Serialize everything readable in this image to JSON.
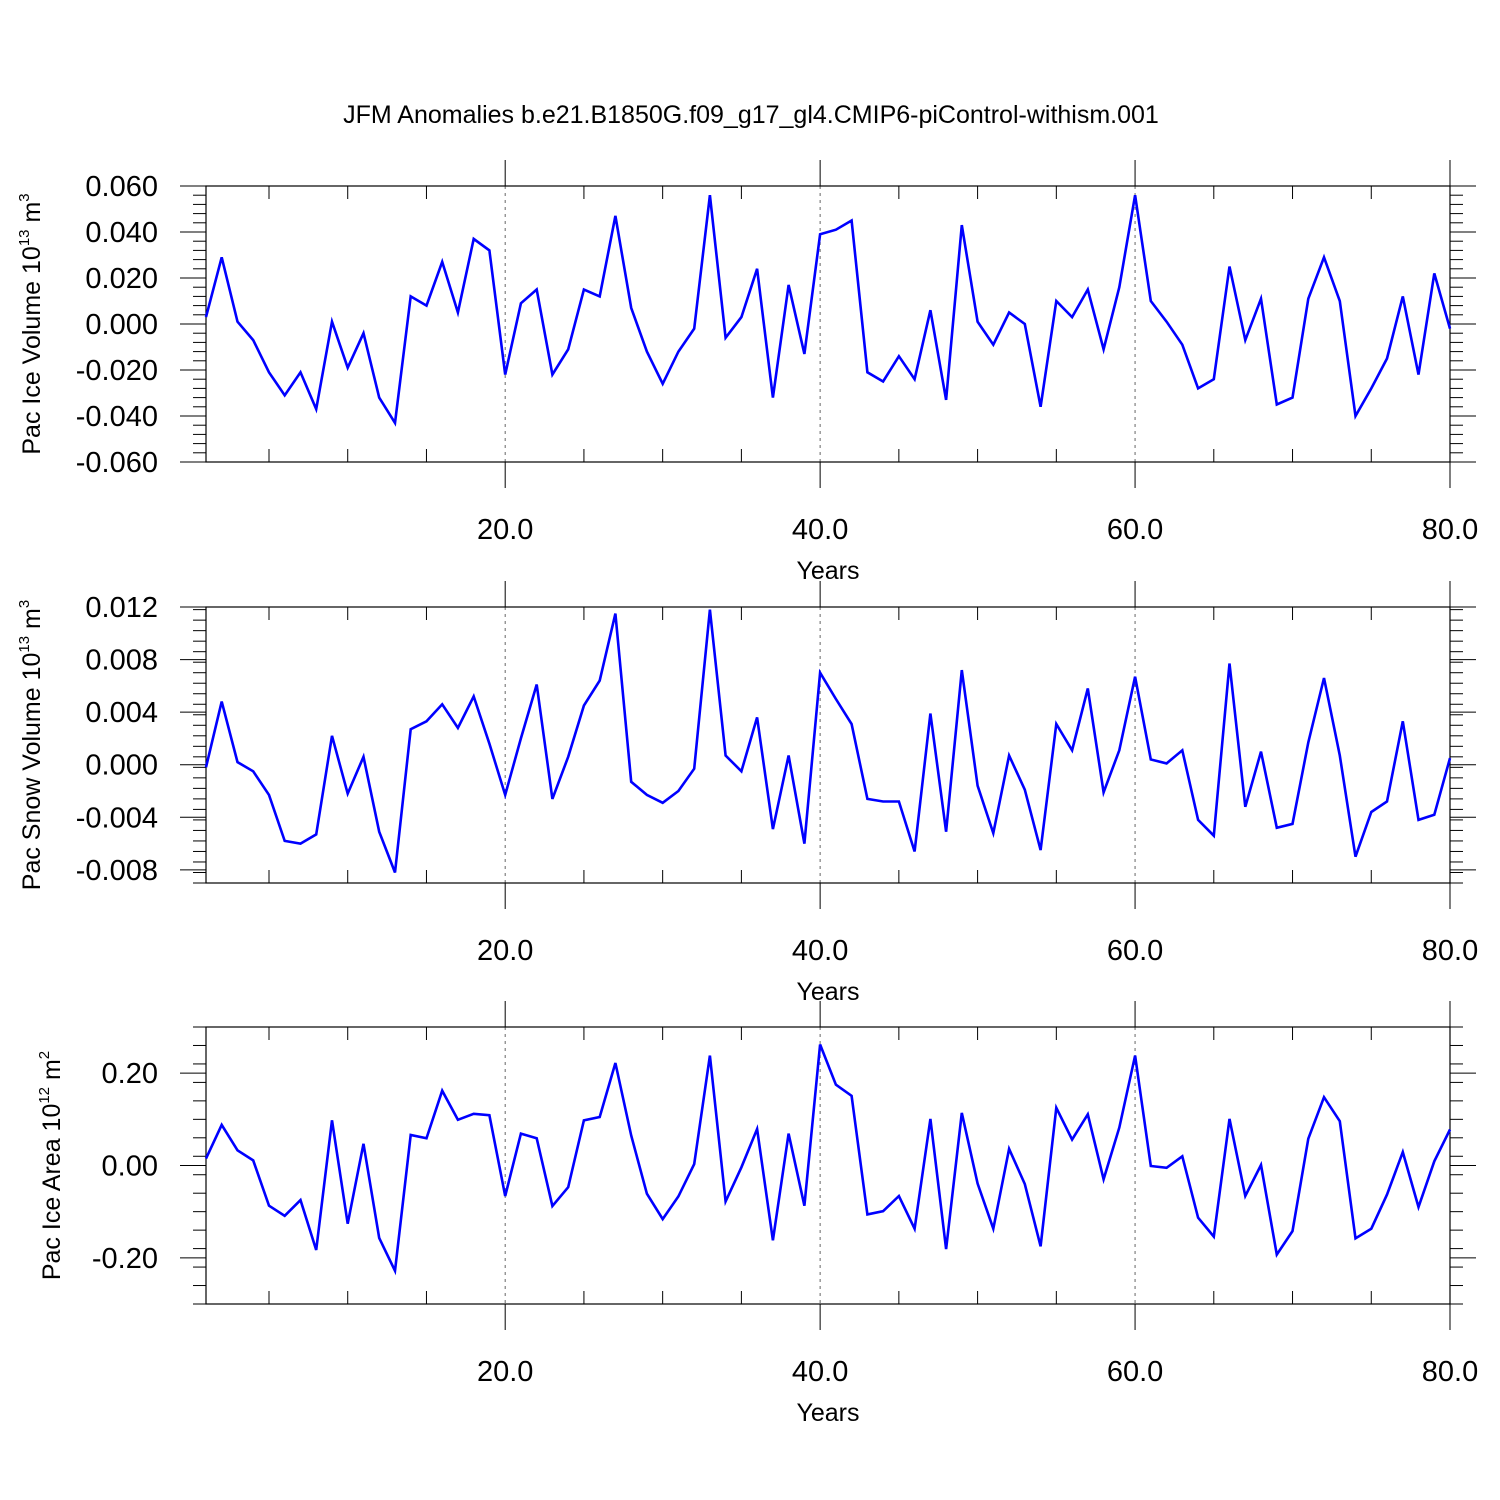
{
  "title": "JFM Anomalies b.e21.B1850G.f09_g17_gl4.CMIP6-piControl-withism.001",
  "colors": {
    "series": "#0000ff",
    "axis": "#000000",
    "grid": "#666666"
  },
  "chart_data": [
    {
      "type": "line",
      "ylabel": {
        "main": "Pac Ice Volume 10",
        "sup": "13",
        "unit": " m",
        "unit_sup": "3"
      },
      "xlabel": "Years",
      "xlim": [
        1,
        80
      ],
      "ylim": [
        -0.06,
        0.06
      ],
      "x_ticks": [
        20,
        40,
        60,
        80
      ],
      "x_tick_labels": [
        "20.0",
        "40.0",
        "60.0",
        "80.0"
      ],
      "y_ticks": [
        -0.06,
        -0.04,
        -0.02,
        0.0,
        0.02,
        0.04,
        0.06
      ],
      "y_tick_labels": [
        "-0.060",
        "-0.040",
        "-0.020",
        "0.000",
        "0.020",
        "0.040",
        "0.060"
      ],
      "grid_x": [
        20,
        40,
        60
      ],
      "x": [
        1,
        2,
        3,
        4,
        5,
        6,
        7,
        8,
        9,
        10,
        11,
        12,
        13,
        14,
        15,
        16,
        17,
        18,
        19,
        20,
        21,
        22,
        23,
        24,
        25,
        26,
        27,
        28,
        29,
        30,
        31,
        32,
        33,
        34,
        35,
        36,
        37,
        38,
        39,
        40,
        41,
        42,
        43,
        44,
        45,
        46,
        47,
        48,
        49,
        50,
        51,
        52,
        53,
        54,
        55,
        56,
        57,
        58,
        59,
        60,
        61,
        62,
        63,
        64,
        65,
        66,
        67,
        68,
        69,
        70,
        71,
        72,
        73,
        74,
        75,
        76,
        77,
        78,
        79,
        80
      ],
      "values": [
        0.003,
        0.029,
        0.001,
        -0.007,
        -0.021,
        -0.031,
        -0.021,
        -0.037,
        0.001,
        -0.019,
        -0.004,
        -0.032,
        -0.043,
        0.012,
        0.008,
        0.027,
        0.005,
        0.037,
        0.032,
        -0.022,
        0.009,
        0.015,
        -0.022,
        -0.011,
        0.015,
        0.012,
        0.047,
        0.007,
        -0.012,
        -0.026,
        -0.012,
        -0.002,
        0.056,
        -0.006,
        0.003,
        0.024,
        -0.032,
        0.017,
        -0.013,
        0.039,
        0.041,
        0.045,
        -0.021,
        -0.025,
        -0.014,
        -0.024,
        0.006,
        -0.033,
        0.043,
        0.001,
        -0.009,
        0.005,
        0.0,
        -0.036,
        0.01,
        0.003,
        0.015,
        -0.011,
        0.016,
        0.056,
        0.01,
        0.001,
        -0.009,
        -0.028,
        -0.024,
        0.025,
        -0.007,
        0.011,
        -0.035,
        -0.032,
        0.011,
        0.029,
        0.01,
        -0.04,
        -0.028,
        -0.015,
        0.012,
        -0.022,
        0.022,
        -0.002
      ]
    },
    {
      "type": "line",
      "ylabel": {
        "main": "Pac Snow Volume 10",
        "sup": "13",
        "unit": " m",
        "unit_sup": "3"
      },
      "xlabel": "Years",
      "xlim": [
        1,
        80
      ],
      "ylim": [
        -0.009,
        0.012
      ],
      "x_ticks": [
        20,
        40,
        60,
        80
      ],
      "x_tick_labels": [
        "20.0",
        "40.0",
        "60.0",
        "80.0"
      ],
      "y_ticks": [
        -0.008,
        -0.004,
        0.0,
        0.004,
        0.008,
        0.012
      ],
      "y_tick_labels": [
        "-0.008",
        "-0.004",
        "0.000",
        "0.004",
        "0.008",
        "0.012"
      ],
      "grid_x": [
        20,
        40,
        60
      ],
      "x": [
        1,
        2,
        3,
        4,
        5,
        6,
        7,
        8,
        9,
        10,
        11,
        12,
        13,
        14,
        15,
        16,
        17,
        18,
        19,
        20,
        21,
        22,
        23,
        24,
        25,
        26,
        27,
        28,
        29,
        30,
        31,
        32,
        33,
        34,
        35,
        36,
        37,
        38,
        39,
        40,
        41,
        42,
        43,
        44,
        45,
        46,
        47,
        48,
        49,
        50,
        51,
        52,
        53,
        54,
        55,
        56,
        57,
        58,
        59,
        60,
        61,
        62,
        63,
        64,
        65,
        66,
        67,
        68,
        69,
        70,
        71,
        72,
        73,
        74,
        75,
        76,
        77,
        78,
        79,
        80
      ],
      "values": [
        -0.0002,
        0.0048,
        0.0002,
        -0.0005,
        -0.0023,
        -0.0058,
        -0.006,
        -0.0053,
        0.0022,
        -0.0022,
        0.0006,
        -0.0051,
        -0.0082,
        0.0027,
        0.0033,
        0.0046,
        0.0028,
        0.0052,
        0.0016,
        -0.0023,
        0.002,
        0.0061,
        -0.0026,
        0.0006,
        0.0045,
        0.0064,
        0.0115,
        -0.0013,
        -0.0023,
        -0.0029,
        -0.002,
        -0.0003,
        0.0118,
        0.0007,
        -0.0005,
        0.0036,
        -0.0049,
        0.0007,
        -0.006,
        0.007,
        0.005,
        0.0031,
        -0.0026,
        -0.0028,
        -0.0028,
        -0.0066,
        0.0039,
        -0.0051,
        0.0072,
        -0.0016,
        -0.0052,
        0.0007,
        -0.0019,
        -0.0065,
        0.0031,
        0.0011,
        0.0058,
        -0.0021,
        0.0011,
        0.0067,
        0.0004,
        0.0001,
        0.0011,
        -0.0042,
        -0.0054,
        0.0077,
        -0.0032,
        0.001,
        -0.0048,
        -0.0045,
        0.0017,
        0.0066,
        0.0007,
        -0.007,
        -0.0036,
        -0.0028,
        0.0033,
        -0.0042,
        -0.0038,
        0.0005
      ]
    },
    {
      "type": "line",
      "ylabel": {
        "main": "Pac Ice Area 10",
        "sup": "12",
        "unit": " m",
        "unit_sup": "2"
      },
      "xlabel": "Years",
      "xlim": [
        1,
        80
      ],
      "ylim": [
        -0.3,
        0.3
      ],
      "x_ticks": [
        20,
        40,
        60,
        80
      ],
      "x_tick_labels": [
        "20.0",
        "40.0",
        "60.0",
        "80.0"
      ],
      "y_ticks": [
        -0.2,
        0.0,
        0.2
      ],
      "y_tick_labels": [
        "-0.20",
        "0.00",
        "0.20"
      ],
      "grid_x": [
        20,
        40,
        60
      ],
      "x": [
        1,
        2,
        3,
        4,
        5,
        6,
        7,
        8,
        9,
        10,
        11,
        12,
        13,
        14,
        15,
        16,
        17,
        18,
        19,
        20,
        21,
        22,
        23,
        24,
        25,
        26,
        27,
        28,
        29,
        30,
        31,
        32,
        33,
        34,
        35,
        36,
        37,
        38,
        39,
        40,
        41,
        42,
        43,
        44,
        45,
        46,
        47,
        48,
        49,
        50,
        51,
        52,
        53,
        54,
        55,
        56,
        57,
        58,
        59,
        60,
        61,
        62,
        63,
        64,
        65,
        66,
        67,
        68,
        69,
        70,
        71,
        72,
        73,
        74,
        75,
        76,
        77,
        78,
        79,
        80
      ],
      "values": [
        0.015,
        0.088,
        0.033,
        0.011,
        -0.087,
        -0.109,
        -0.075,
        -0.183,
        0.098,
        -0.126,
        0.047,
        -0.157,
        -0.228,
        0.066,
        0.059,
        0.162,
        0.099,
        0.112,
        0.109,
        -0.066,
        0.069,
        0.059,
        -0.088,
        -0.047,
        0.098,
        0.105,
        0.222,
        0.065,
        -0.061,
        -0.116,
        -0.067,
        0.003,
        0.238,
        -0.078,
        -0.004,
        0.079,
        -0.162,
        0.069,
        -0.087,
        0.262,
        0.175,
        0.151,
        -0.106,
        -0.099,
        -0.066,
        -0.137,
        0.101,
        -0.181,
        0.114,
        -0.039,
        -0.137,
        0.036,
        -0.04,
        -0.175,
        0.125,
        0.056,
        0.111,
        -0.03,
        0.082,
        0.238,
        -0.001,
        -0.005,
        0.02,
        -0.113,
        -0.154,
        0.101,
        -0.066,
        0.001,
        -0.193,
        -0.142,
        0.058,
        0.148,
        0.096,
        -0.158,
        -0.137,
        -0.063,
        0.029,
        -0.09,
        0.009,
        0.078
      ]
    }
  ]
}
